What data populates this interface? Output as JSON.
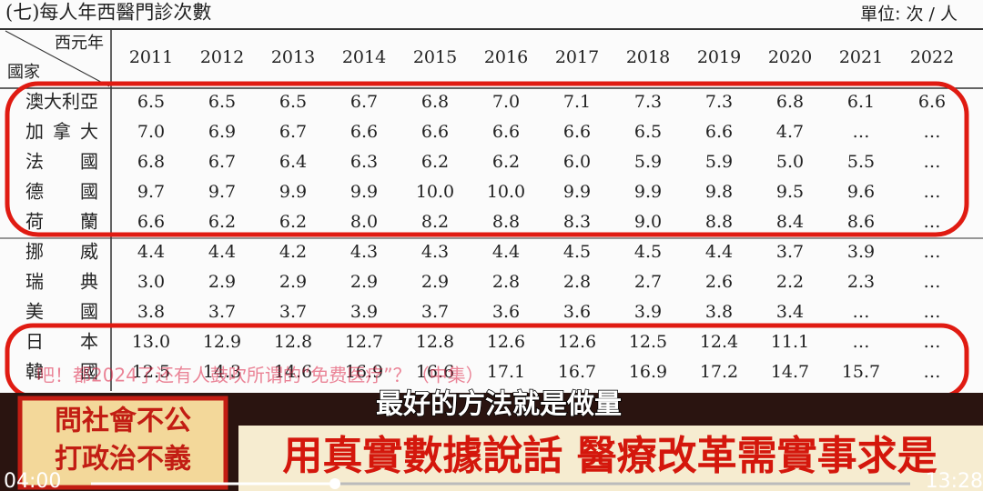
{
  "header": {
    "title": "(七)每人年西醫門診次數",
    "unit": "單位: 次 / 人"
  },
  "table": {
    "corner": {
      "column": "西元年",
      "row": "國家"
    },
    "columns": [
      "2011",
      "2012",
      "2013",
      "2014",
      "2015",
      "2016",
      "2017",
      "2018",
      "2019",
      "2020",
      "2021",
      "2022"
    ],
    "rows": [
      {
        "country": "澳大利亞",
        "values": [
          "6.5",
          "6.5",
          "6.5",
          "6.7",
          "6.8",
          "7.0",
          "7.1",
          "7.3",
          "7.3",
          "6.8",
          "6.1",
          "6.6"
        ]
      },
      {
        "country": "加拿大",
        "values": [
          "7.0",
          "6.9",
          "6.7",
          "6.6",
          "6.6",
          "6.6",
          "6.6",
          "6.5",
          "6.6",
          "4.7",
          "…",
          "…"
        ]
      },
      {
        "country": "法國",
        "values": [
          "6.8",
          "6.7",
          "6.4",
          "6.3",
          "6.2",
          "6.2",
          "6.0",
          "5.9",
          "5.9",
          "5.0",
          "5.5",
          "…"
        ]
      },
      {
        "country": "德國",
        "values": [
          "9.7",
          "9.7",
          "9.9",
          "9.9",
          "10.0",
          "10.0",
          "9.9",
          "9.9",
          "9.8",
          "9.5",
          "9.6",
          "…"
        ]
      },
      {
        "country": "荷蘭",
        "values": [
          "6.6",
          "6.2",
          "6.2",
          "8.0",
          "8.2",
          "8.8",
          "8.3",
          "9.0",
          "8.8",
          "8.4",
          "8.6",
          "…"
        ]
      },
      {
        "country": "挪威",
        "values": [
          "4.4",
          "4.4",
          "4.2",
          "4.3",
          "4.3",
          "4.4",
          "4.5",
          "4.5",
          "4.4",
          "3.7",
          "3.9",
          "…"
        ]
      },
      {
        "country": "瑞典",
        "values": [
          "3.0",
          "2.9",
          "2.9",
          "2.9",
          "2.9",
          "2.8",
          "2.8",
          "2.7",
          "2.6",
          "2.2",
          "2.3",
          "…"
        ]
      },
      {
        "country": "美國",
        "values": [
          "3.8",
          "3.7",
          "3.7",
          "3.9",
          "3.7",
          "3.6",
          "3.6",
          "3.9",
          "3.8",
          "3.4",
          "…",
          "…"
        ]
      },
      {
        "country": "日本",
        "values": [
          "13.0",
          "12.9",
          "12.8",
          "12.7",
          "12.8",
          "12.6",
          "12.6",
          "12.5",
          "12.4",
          "11.1",
          "…",
          "…"
        ]
      },
      {
        "country": "韓國",
        "values": [
          "12.5",
          "14.3",
          "14.6",
          "16.9",
          "16.6",
          "17.1",
          "16.7",
          "16.9",
          "17.2",
          "14.7",
          "15.7",
          "…"
        ]
      }
    ]
  },
  "video": {
    "ticker": "吧！都2024了还有人鼓吹所谓的“免费医疗”？（中集）",
    "subtitle": "最好的方法就是做量",
    "sign": [
      "問社會不公",
      "打政治不義"
    ],
    "banner": "用真實數據說話 醫療改革需實事求是",
    "time_current": "04:00",
    "time_total": "13:28"
  }
}
